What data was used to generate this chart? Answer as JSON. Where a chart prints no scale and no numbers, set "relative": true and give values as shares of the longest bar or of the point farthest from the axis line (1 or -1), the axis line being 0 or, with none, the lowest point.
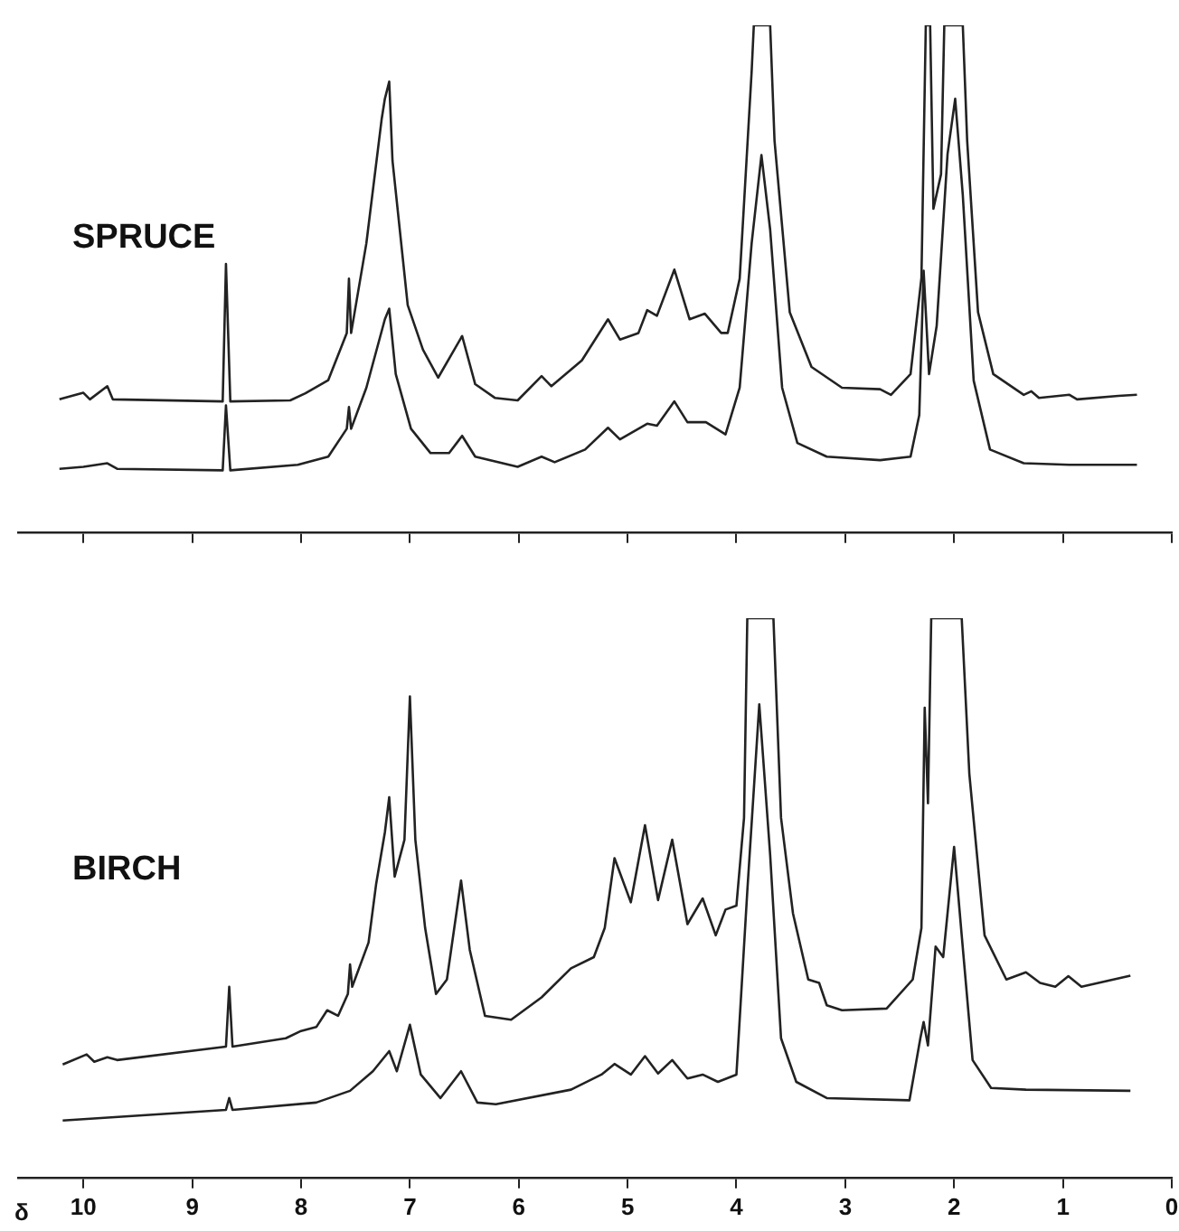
{
  "chart_data": [
    {
      "type": "line",
      "relative": true,
      "annotations": [
        "SPRUCE"
      ],
      "xlim": [
        10.6,
        0
      ],
      "xticks": [
        0,
        1,
        2,
        3,
        4,
        5,
        6,
        7,
        8,
        9,
        10
      ],
      "tick_labels": false,
      "marker": "none",
      "line_style": "solid",
      "series": [
        {
          "color": "#222222",
          "x": [
            10.22,
            10.0,
            9.94,
            9.78,
            9.73,
            8.72,
            8.69,
            8.65,
            8.1,
            7.96,
            7.75,
            7.58,
            7.56,
            7.54,
            7.4,
            7.26,
            7.23,
            7.19,
            7.16,
            7.02,
            6.88,
            6.74,
            6.52,
            6.4,
            6.22,
            6.01,
            5.79,
            5.7,
            5.42,
            5.18,
            5.07,
            4.9,
            4.82,
            4.73,
            4.57,
            4.43,
            4.29,
            4.14,
            4.08,
            3.97,
            3.86,
            3.84,
            3.69,
            3.65,
            3.51,
            3.31,
            3.03,
            2.68,
            2.58,
            2.4,
            2.3,
            2.26,
            2.22,
            2.19,
            2.12,
            2.09,
            1.92,
            1.88,
            1.78,
            1.64,
            1.36,
            1.29,
            1.22,
            0.94,
            0.87,
            0.49,
            0.32
          ],
          "values": [
            0.262,
            0.275,
            0.262,
            0.288,
            0.262,
            0.258,
            0.529,
            0.258,
            0.26,
            0.274,
            0.3,
            0.393,
            0.5,
            0.393,
            0.57,
            0.814,
            0.855,
            0.889,
            0.733,
            0.448,
            0.36,
            0.305,
            0.387,
            0.292,
            0.265,
            0.26,
            0.308,
            0.288,
            0.339,
            0.42,
            0.38,
            0.393,
            0.438,
            0.427,
            0.518,
            0.42,
            0.431,
            0.393,
            0.393,
            0.5,
            0.909,
            1,
            1,
            0.773,
            0.434,
            0.326,
            0.285,
            0.282,
            0.271,
            0.312,
            0.502,
            1,
            1,
            0.638,
            0.706,
            1,
            1,
            0.773,
            0.434,
            0.312,
            0.271,
            0.278,
            0.265,
            0.271,
            0.262,
            0.269,
            0.271
          ]
        },
        {
          "color": "#222222",
          "x": [
            10.22,
            10.0,
            9.78,
            9.69,
            8.72,
            8.69,
            8.65,
            8.03,
            7.75,
            7.58,
            7.56,
            7.54,
            7.4,
            7.23,
            7.19,
            7.13,
            6.99,
            6.81,
            6.64,
            6.52,
            6.4,
            6.01,
            5.79,
            5.67,
            5.39,
            5.18,
            5.07,
            4.82,
            4.73,
            4.57,
            4.45,
            4.28,
            4.1,
            3.97,
            3.86,
            3.77,
            3.69,
            3.58,
            3.44,
            3.17,
            2.68,
            2.4,
            2.32,
            2.28,
            2.23,
            2.16,
            2.06,
            1.99,
            1.92,
            1.82,
            1.67,
            1.36,
            0.94,
            0.32
          ],
          "values": [
            0.125,
            0.129,
            0.136,
            0.125,
            0.122,
            0.25,
            0.122,
            0.133,
            0.149,
            0.204,
            0.247,
            0.204,
            0.285,
            0.42,
            0.441,
            0.312,
            0.204,
            0.156,
            0.156,
            0.19,
            0.149,
            0.129,
            0.149,
            0.138,
            0.163,
            0.206,
            0.183,
            0.214,
            0.21,
            0.258,
            0.217,
            0.217,
            0.193,
            0.285,
            0.57,
            0.744,
            0.597,
            0.285,
            0.176,
            0.149,
            0.142,
            0.149,
            0.231,
            0.516,
            0.312,
            0.407,
            0.746,
            0.855,
            0.665,
            0.299,
            0.163,
            0.136,
            0.133,
            0.133
          ]
        }
      ]
    },
    {
      "type": "line",
      "relative": true,
      "annotations": [
        "BIRCH"
      ],
      "xlabel": "δ",
      "xlim": [
        10.6,
        0
      ],
      "xticks": [
        0,
        1,
        2,
        3,
        4,
        5,
        6,
        7,
        8,
        9,
        10
      ],
      "tick_labels": "x",
      "marker": "none",
      "line_style": "solid",
      "series": [
        {
          "color": "#222222",
          "x": [
            10.19,
            9.97,
            9.9,
            9.78,
            9.69,
            8.69,
            8.66,
            8.63,
            8.14,
            8.0,
            7.86,
            7.76,
            7.66,
            7.57,
            7.55,
            7.53,
            7.38,
            7.31,
            7.23,
            7.19,
            7.14,
            7.05,
            7.0,
            6.95,
            6.86,
            6.76,
            6.66,
            6.53,
            6.45,
            6.31,
            6.07,
            5.79,
            5.52,
            5.31,
            5.21,
            5.12,
            4.97,
            4.84,
            4.72,
            4.59,
            4.45,
            4.31,
            4.19,
            4.1,
            4.0,
            3.93,
            3.9,
            3.66,
            3.59,
            3.48,
            3.34,
            3.24,
            3.17,
            3.03,
            2.62,
            2.38,
            2.3,
            2.27,
            2.24,
            2.21,
            1.93,
            1.86,
            1.72,
            1.52,
            1.34,
            1.21,
            1.07,
            0.95,
            0.83,
            0.38
          ],
          "values": [
            0.202,
            0.22,
            0.207,
            0.215,
            0.21,
            0.234,
            0.341,
            0.234,
            0.249,
            0.262,
            0.269,
            0.299,
            0.289,
            0.328,
            0.381,
            0.341,
            0.42,
            0.525,
            0.617,
            0.68,
            0.538,
            0.604,
            0.86,
            0.604,
            0.446,
            0.328,
            0.354,
            0.531,
            0.407,
            0.289,
            0.282,
            0.322,
            0.374,
            0.394,
            0.446,
            0.571,
            0.492,
            0.63,
            0.496,
            0.604,
            0.453,
            0.499,
            0.433,
            0.479,
            0.486,
            0.643,
            1,
            1,
            0.643,
            0.472,
            0.354,
            0.348,
            0.308,
            0.299,
            0.302,
            0.354,
            0.446,
            0.84,
            0.669,
            1,
            1,
            0.722,
            0.433,
            0.354,
            0.367,
            0.348,
            0.341,
            0.36,
            0.341,
            0.361
          ]
        },
        {
          "color": "#222222",
          "x": [
            10.19,
            8.69,
            8.66,
            8.63,
            7.86,
            7.55,
            7.34,
            7.19,
            7.12,
            7.0,
            6.9,
            6.72,
            6.53,
            6.38,
            6.21,
            5.52,
            5.24,
            5.12,
            4.97,
            4.84,
            4.72,
            4.59,
            4.45,
            4.31,
            4.17,
            4.0,
            3.9,
            3.79,
            3.69,
            3.59,
            3.45,
            3.17,
            2.41,
            2.31,
            2.28,
            2.24,
            2.17,
            2.1,
            2.0,
            1.93,
            1.83,
            1.66,
            1.34,
            0.38
          ],
          "values": [
            0.102,
            0.121,
            0.142,
            0.121,
            0.134,
            0.155,
            0.19,
            0.226,
            0.19,
            0.273,
            0.184,
            0.142,
            0.19,
            0.134,
            0.131,
            0.157,
            0.184,
            0.203,
            0.184,
            0.217,
            0.186,
            0.21,
            0.177,
            0.184,
            0.171,
            0.184,
            0.512,
            0.846,
            0.577,
            0.249,
            0.171,
            0.142,
            0.138,
            0.249,
            0.278,
            0.236,
            0.413,
            0.394,
            0.591,
            0.433,
            0.21,
            0.16,
            0.157,
            0.155
          ]
        }
      ]
    }
  ]
}
